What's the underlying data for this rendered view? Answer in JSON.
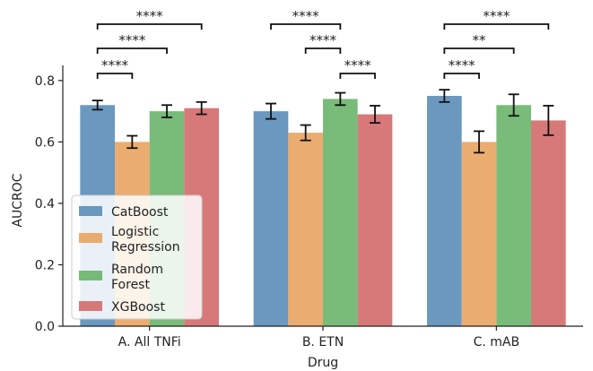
{
  "chart_data": {
    "type": "bar",
    "xlabel": "Drug",
    "ylabel": "AUCROC",
    "ylim": [
      0,
      0.82
    ],
    "yticks": [
      "0.0",
      "0.2",
      "0.4",
      "0.6",
      "0.8"
    ],
    "yticks_values": [
      0,
      0.2,
      0.4,
      0.6,
      0.8
    ],
    "categories": [
      "A. All TNFi",
      "B. ETN",
      "C. mAB"
    ],
    "series": [
      {
        "name": "CatBoost",
        "color": "#5b8db8",
        "values": [
          0.72,
          0.7,
          0.75
        ],
        "error": [
          0.015,
          0.025,
          0.02
        ]
      },
      {
        "name": "Logistic\nRegression",
        "color": "#e9a35f",
        "values": [
          0.6,
          0.63,
          0.6
        ],
        "error": [
          0.02,
          0.025,
          0.035
        ]
      },
      {
        "name": "Random\nForest",
        "color": "#6ab46a",
        "values": [
          0.7,
          0.74,
          0.72
        ],
        "error": [
          0.02,
          0.02,
          0.035
        ]
      },
      {
        "name": "XGBoost",
        "color": "#d46a6a",
        "values": [
          0.71,
          0.69,
          0.67
        ],
        "error": [
          0.02,
          0.028,
          0.048
        ]
      }
    ],
    "significance": [
      {
        "group": 0,
        "from": 0,
        "to": 1,
        "label": "****",
        "level": 1
      },
      {
        "group": 0,
        "from": 0,
        "to": 2,
        "label": "****",
        "level": 2
      },
      {
        "group": 0,
        "from": 0,
        "to": 3,
        "label": "****",
        "level": 3
      },
      {
        "group": 1,
        "from": 0,
        "to": 2,
        "label": "****",
        "level": 3
      },
      {
        "group": 1,
        "from": 1,
        "to": 2,
        "label": "****",
        "level": 2
      },
      {
        "group": 1,
        "from": 2,
        "to": 3,
        "label": "****",
        "level": 1
      },
      {
        "group": 2,
        "from": 0,
        "to": 1,
        "label": "****",
        "level": 1
      },
      {
        "group": 2,
        "from": 0,
        "to": 2,
        "label": "**",
        "level": 2
      },
      {
        "group": 2,
        "from": 0,
        "to": 3,
        "label": "****",
        "level": 3
      }
    ],
    "legend": {
      "placement": "lower-left"
    },
    "grid": false
  }
}
